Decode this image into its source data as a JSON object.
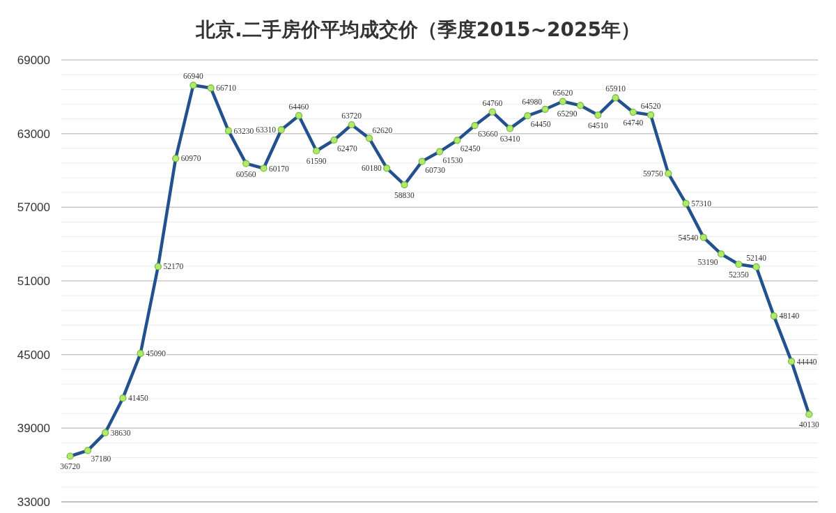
{
  "chart_data": {
    "type": "line",
    "title": "北京.二手房价平均成交价（季度2015~2025年）",
    "categories": [
      null,
      null,
      null,
      null,
      null,
      null,
      null,
      null,
      null,
      null,
      null,
      null,
      null,
      null,
      null,
      null,
      null,
      null,
      null,
      null,
      null,
      null,
      null,
      null,
      null,
      null,
      null,
      null,
      null,
      null,
      null,
      null,
      null,
      null,
      null,
      null,
      null,
      null,
      null,
      null,
      null,
      null,
      null
    ],
    "series": [
      {
        "color": "#23508f",
        "values": [
          36720,
          37180,
          38630,
          41450,
          45090,
          52170,
          60970,
          66940,
          66710,
          63230,
          60560,
          60170,
          63310,
          64460,
          61590,
          62470,
          63720,
          62620,
          60180,
          58830,
          60730,
          61530,
          62450,
          63660,
          64760,
          63410,
          64450,
          64980,
          65620,
          65290,
          64510,
          65910,
          64740,
          64520,
          59750,
          57310,
          54540,
          53190,
          52350,
          52140,
          48140,
          44440,
          40130
        ]
      }
    ],
    "ylim": [
      33000,
      69000
    ],
    "yticks": [
      33000,
      {
        "value": 34200,
        "label": null
      },
      {
        "value": 35400,
        "label": null
      },
      {
        "value": 36600,
        "label": null
      },
      {
        "value": 37800,
        "label": null
      },
      39000,
      {
        "value": 40200,
        "label": null
      },
      {
        "value": 41400,
        "label": null
      },
      {
        "value": 42600,
        "label": null
      },
      {
        "value": 43800,
        "label": null
      },
      45000,
      {
        "value": 46200,
        "label": null
      },
      {
        "value": 47400,
        "label": null
      },
      {
        "value": 48600,
        "label": null
      },
      {
        "value": 49800,
        "label": null
      },
      51000,
      {
        "value": 52200,
        "label": null
      },
      {
        "value": 53400,
        "label": null
      },
      {
        "value": 54600,
        "label": null
      },
      {
        "value": 55800,
        "label": null
      },
      57000,
      {
        "value": 58200,
        "label": null
      },
      {
        "value": 59400,
        "label": null
      },
      {
        "value": 60600,
        "label": null
      },
      {
        "value": 61800,
        "label": null
      },
      63000,
      {
        "value": 64200,
        "label": null
      },
      {
        "value": 65400,
        "label": null
      },
      {
        "value": 66600,
        "label": null
      },
      {
        "value": 67800,
        "label": null
      },
      69000
    ],
    "grid": "y",
    "marker": "circle",
    "line_style": "solid",
    "data_labels": true
  }
}
